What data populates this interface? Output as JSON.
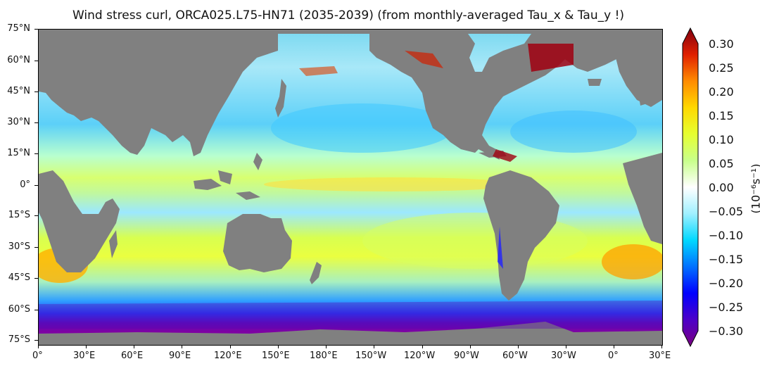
{
  "title": "Wind stress curl, ORCA025.L75-HN71 (2035-2039) (from monthly-averaged Tau_x & Tau_y !)",
  "lat_labels": [
    "75°N",
    "60°N",
    "45°N",
    "30°N",
    "15°N",
    "0°",
    "15°S",
    "30°S",
    "45°S",
    "60°S",
    "75°S"
  ],
  "lon_labels": [
    "0°",
    "30°E",
    "60°E",
    "90°E",
    "120°E",
    "150°E",
    "180°E",
    "150°W",
    "120°W",
    "90°W",
    "60°W",
    "30°W",
    "0°",
    "30°E"
  ],
  "colorbar": {
    "ticks": [
      "0.30",
      "0.25",
      "0.20",
      "0.15",
      "0.10",
      "0.05",
      "0.00",
      "−0.05",
      "−0.10",
      "−0.15",
      "−0.20",
      "−0.25",
      "−0.30"
    ],
    "unit_label": "(10⁻⁶s⁻¹)",
    "min": -0.3,
    "max": 0.3,
    "colors": [
      "#7b0080",
      "#4d00c8",
      "#0000ff",
      "#0070ff",
      "#00d8ff",
      "#a0f0ff",
      "#ffffff",
      "#c8ff8c",
      "#e6ff30",
      "#ffd800",
      "#ff8c00",
      "#e02000",
      "#800010"
    ]
  },
  "colors": {
    "land": "#808080"
  }
}
